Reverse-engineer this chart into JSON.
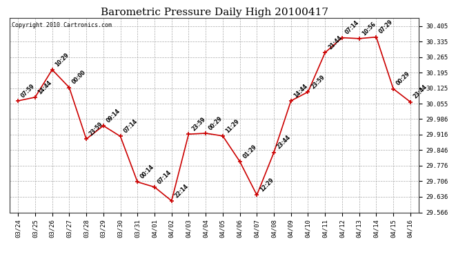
{
  "title": "Barometric Pressure Daily High 20100417",
  "copyright": "Copyright 2010 Cartronics.com",
  "x_labels": [
    "03/24",
    "03/25",
    "03/26",
    "03/27",
    "03/28",
    "03/29",
    "03/30",
    "03/31",
    "04/01",
    "04/02",
    "04/03",
    "04/04",
    "04/05",
    "04/06",
    "04/07",
    "04/08",
    "04/09",
    "04/10",
    "04/11",
    "04/12",
    "04/13",
    "04/14",
    "04/15",
    "04/16"
  ],
  "y_values": [
    30.068,
    30.084,
    30.208,
    30.128,
    29.896,
    29.956,
    29.908,
    29.703,
    29.68,
    29.618,
    29.918,
    29.922,
    29.91,
    29.795,
    29.644,
    29.836,
    30.068,
    30.108,
    30.285,
    30.352,
    30.348,
    30.355,
    30.122,
    30.063
  ],
  "time_labels": [
    "07:59",
    "14:44",
    "10:29",
    "00:00",
    "23:59",
    "09:14",
    "07:14",
    "00:14",
    "07:14",
    "22:14",
    "23:59",
    "00:29",
    "11:29",
    "01:29",
    "12:29",
    "23:44",
    "14:44",
    "23:59",
    "21:44",
    "07:14",
    "10:56",
    "07:29",
    "00:29",
    "23:44"
  ],
  "line_color": "#cc0000",
  "marker_color": "#cc0000",
  "background_color": "#ffffff",
  "grid_color": "#aaaaaa",
  "title_fontsize": 11,
  "copyright_fontsize": 6,
  "label_fontsize": 5.5,
  "tick_fontsize": 6.5,
  "ylim_min": 29.566,
  "ylim_max": 30.44,
  "yticks": [
    30.405,
    30.335,
    30.265,
    30.195,
    30.125,
    30.055,
    29.986,
    29.916,
    29.846,
    29.776,
    29.706,
    29.636,
    29.566
  ]
}
